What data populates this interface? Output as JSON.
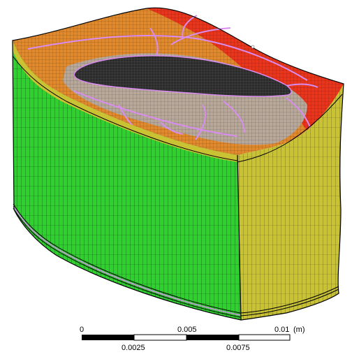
{
  "scale_bar": {
    "top_labels": [
      "0",
      "0.005",
      "0.01"
    ],
    "bottom_labels": [
      "0.0025",
      "0.0075"
    ],
    "unit": "(m)"
  },
  "colors": {
    "face_green": "#2ed12e",
    "face_olive": "#c9c233",
    "top_red": "#e8351c",
    "top_orange": "#e0892d",
    "blade_dark": "#2b2b2b",
    "block_edge": "#d98cf0",
    "mesh_line": "#000000"
  }
}
